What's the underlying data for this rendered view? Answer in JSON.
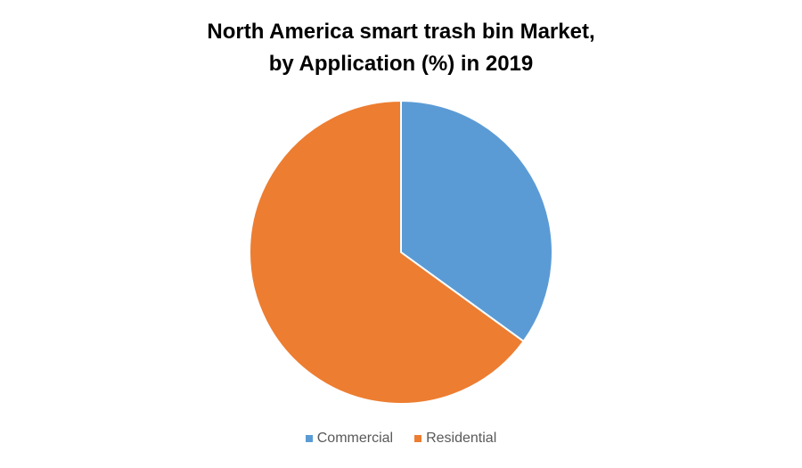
{
  "chart_data": {
    "type": "pie",
    "title_lines": [
      "North America smart trash bin Market,",
      "by Application (%) in 2019"
    ],
    "categories": [
      "Commercial",
      "Residential"
    ],
    "values": [
      35,
      65
    ],
    "colors": [
      "#5B9BD5",
      "#ED7D31"
    ],
    "legend_position": "bottom"
  }
}
